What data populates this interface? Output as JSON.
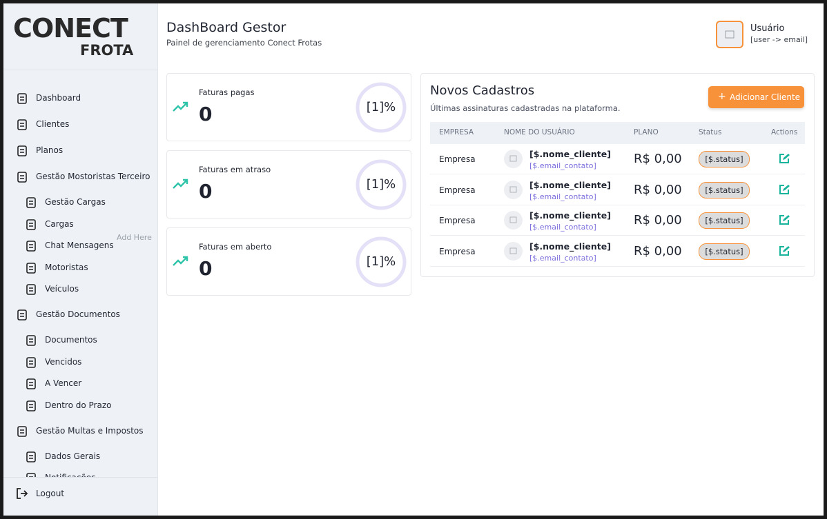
{
  "logo": {
    "brand": "CONECT",
    "product": "FROTA"
  },
  "sidebar": {
    "items": [
      {
        "label": "Dashboard"
      },
      {
        "label": "Clientes"
      },
      {
        "label": "Planos"
      },
      {
        "label": "Gestão Mostoristas Terceiro",
        "sub": [
          "Gestão Cargas",
          "Cargas",
          "Chat Mensagens",
          "Motoristas",
          "Veículos"
        ]
      },
      {
        "label": "Gestão Documentos",
        "sub": [
          "Documentos",
          "Vencidos",
          "A Vencer",
          "Dentro do Prazo"
        ]
      },
      {
        "label": "Gestão Multas e Impostos",
        "sub": [
          "Dados Gerais",
          "Notificações"
        ]
      }
    ],
    "add_here": "Add Here",
    "logout": "Logout"
  },
  "header": {
    "title": "DashBoard Gestor",
    "subtitle": "Painel de gerenciamento Conect Frotas",
    "user_name": "Usuário",
    "user_email": "[user -> email]"
  },
  "cards": [
    {
      "label": "Faturas pagas",
      "value": 0,
      "percent": "[1]%"
    },
    {
      "label": "Faturas em atraso",
      "value": 0,
      "percent": "[1]%"
    },
    {
      "label": "Faturas em aberto",
      "value": 0,
      "percent": "[1]%"
    }
  ],
  "table": {
    "title": "Novos Cadastros",
    "subtitle": "Últimas assinaturas cadastradas na plataforma.",
    "button": "Adicionar Cliente",
    "columns": [
      "EMPRESA",
      "NOME DO USUÁRIO",
      "PLANO",
      "Status",
      "Actions"
    ],
    "rows": [
      {
        "empresa": "Empresa",
        "nome": "[$.nome_cliente]",
        "email": "[$.email_contato]",
        "plano": "R$ 0,00",
        "status": "[$.status]"
      },
      {
        "empresa": "Empresa",
        "nome": "[$.nome_cliente]",
        "email": "[$.email_contato]",
        "plano": "R$ 0,00",
        "status": "[$.status]"
      },
      {
        "empresa": "Empresa",
        "nome": "[$.nome_cliente]",
        "email": "[$.email_contato]",
        "plano": "R$ 0,00",
        "status": "[$.status]"
      },
      {
        "empresa": "Empresa",
        "nome": "[$.nome_cliente]",
        "email": "[$.email_contato]",
        "plano": "R$ 0,00",
        "status": "[$.status]"
      }
    ]
  }
}
